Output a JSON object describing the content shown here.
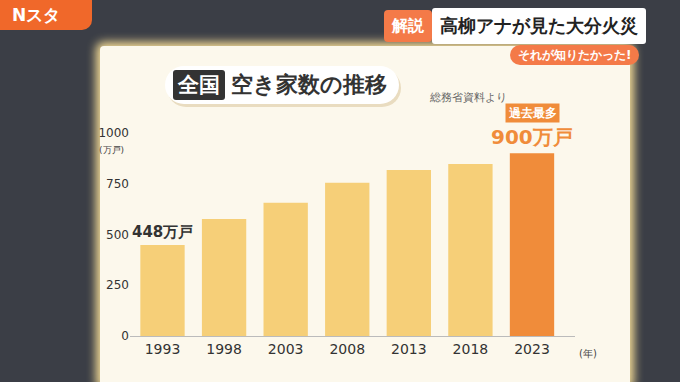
{
  "screen": {
    "logo": "Nスタ",
    "label": "解説",
    "headline": "高柳アナが見た大分火災",
    "tagline": "それが知りたかった!"
  },
  "chart_data": {
    "type": "bar",
    "title_badge": "全国",
    "title": "空き家数の推移",
    "source": "総務省資料より",
    "categories": [
      "1993",
      "1998",
      "2003",
      "2008",
      "2013",
      "2018",
      "2023"
    ],
    "values": [
      448,
      576,
      656,
      755,
      818,
      847,
      900
    ],
    "value_labels": [
      "448万戸",
      null,
      null,
      null,
      null,
      null,
      "900万戸"
    ],
    "data_labels": true,
    "colors": [
      "#f6cf78",
      "#f6cf78",
      "#f6cf78",
      "#f6cf78",
      "#f6cf78",
      "#f6cf78",
      "#f08c3a"
    ],
    "y_label": "(万戸)",
    "x_label": "(年)",
    "ylim": [
      0,
      1000
    ],
    "yticks": [
      0,
      250,
      500,
      750,
      1000
    ],
    "grid": false,
    "annotations": [
      {
        "category": "2023",
        "text": "過去最多"
      }
    ]
  }
}
